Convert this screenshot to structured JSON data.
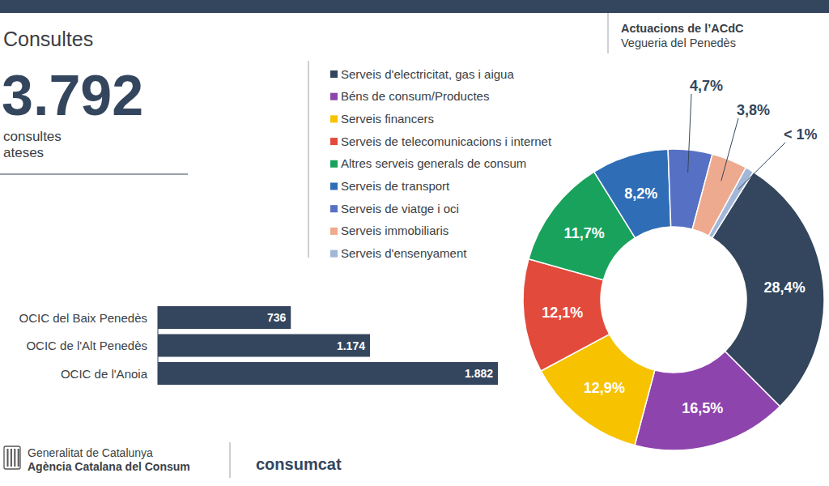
{
  "header": {
    "title": "Consultes",
    "org_title": "Actuacions de l’ACdC",
    "org_subtitle": "Vegueria del Penedès"
  },
  "kpi": {
    "value": "3.792",
    "caption": [
      "consultes",
      "ateses"
    ]
  },
  "footer": {
    "government": "Generalitat de Catalunya",
    "agency": "Agència Catalana del Consum",
    "brand": "consumcat"
  },
  "chart_data": [
    {
      "type": "pie",
      "categories": [
        "Serveis d'electricitat, gas i aigua",
        "Béns de consum/Productes",
        "Serveis financers",
        "Serveis de telecomunicacions i internet",
        "Altres serveis generals de consum",
        "Serveis de transport",
        "Serveis de viatge i oci",
        "Serveis immobiliaris",
        "Serveis d'ensenyament"
      ],
      "values": [
        28.4,
        16.5,
        12.9,
        12.1,
        11.7,
        8.2,
        4.7,
        3.8,
        0.9
      ],
      "value_labels": [
        "28,4%",
        "16,5%",
        "12,9%",
        "12,1%",
        "11,7%",
        "8,2%",
        "4,7%",
        "3,8%",
        "< 1%"
      ],
      "colors": [
        "#34465d",
        "#8e44ad",
        "#f7c200",
        "#e24a3b",
        "#19a25c",
        "#2f6db6",
        "#5670c4",
        "#eeaa8f",
        "#a2b6d9"
      ],
      "legend": "left",
      "data_labels": true
    },
    {
      "type": "bar",
      "orientation": "horizontal",
      "categories": [
        "OCIC del Baix Penedès",
        "OCIC de l'Alt Penedès",
        "OCIC de l'Anoia"
      ],
      "values": [
        736,
        1174,
        1882
      ],
      "value_labels": [
        "736",
        "1.174",
        "1.882"
      ],
      "color": "#34465d",
      "xlim": [
        0,
        1882
      ],
      "tick_labels": "y",
      "data_labels": true
    }
  ]
}
